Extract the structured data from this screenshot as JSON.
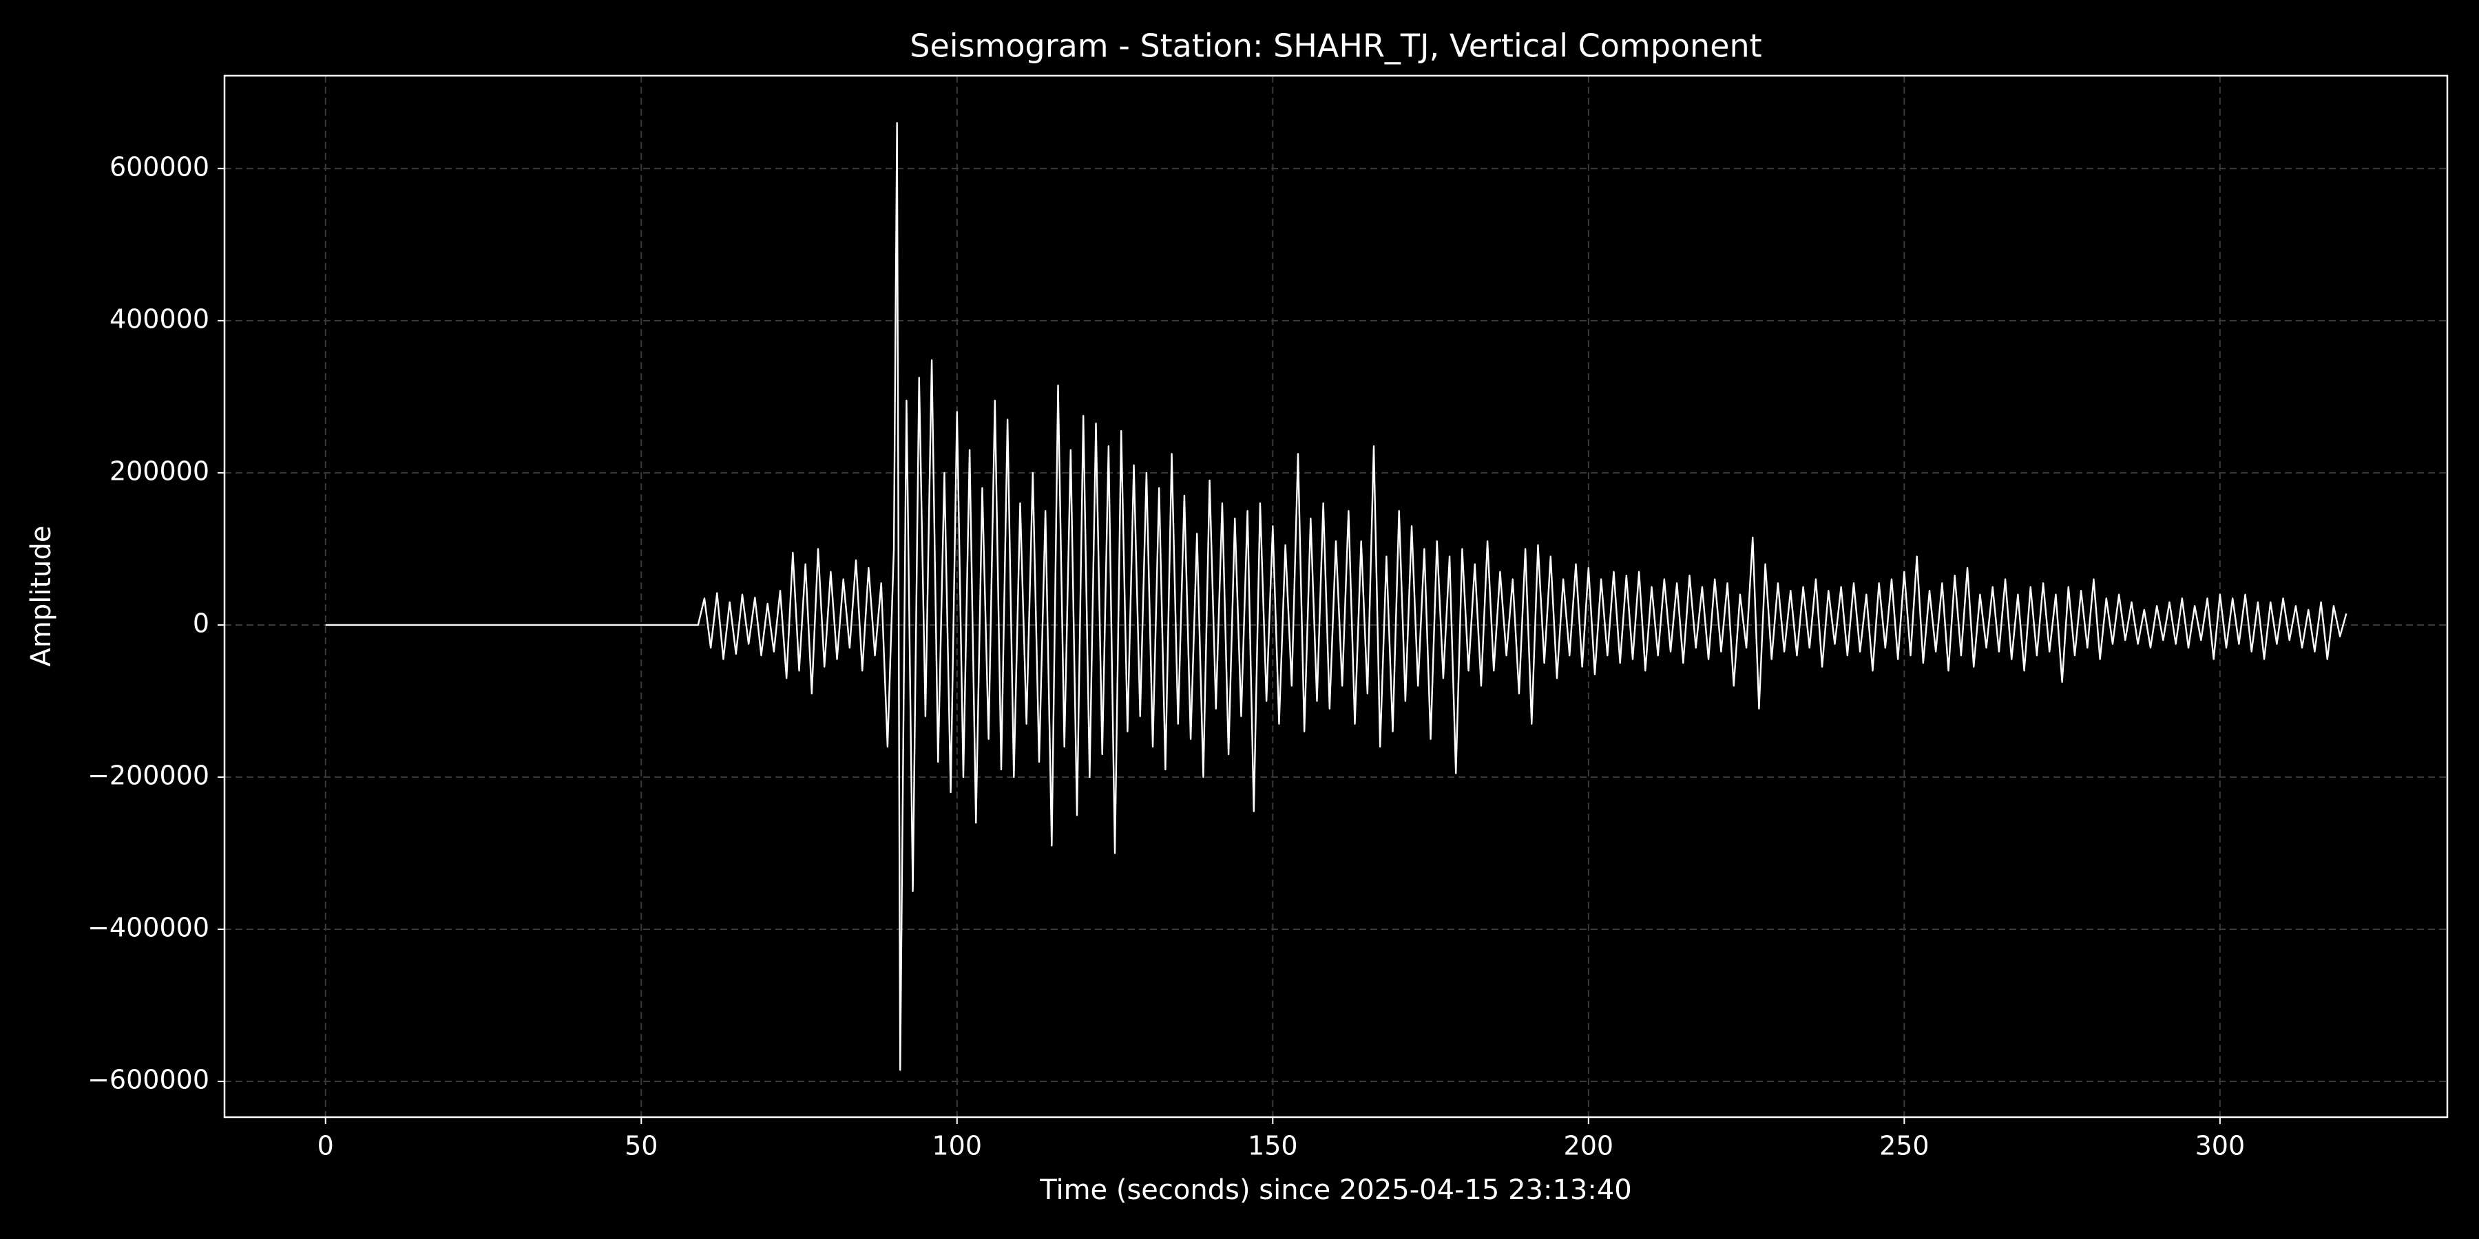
{
  "chart_data": {
    "type": "line",
    "title": "Seismogram - Station: SHAHR_TJ, Vertical Component",
    "xlabel": "Time (seconds) since 2025-04-15 23:13:40",
    "ylabel": "Amplitude",
    "background": "#000000",
    "color": "#ffffff",
    "grid": true,
    "xlim": [
      -16,
      336
    ],
    "ylim": [
      -647000,
      722000
    ],
    "xticks": [
      0,
      50,
      100,
      150,
      200,
      250,
      300
    ],
    "yticks": [
      {
        "value": -600000,
        "label": "−600000"
      },
      {
        "value": -400000,
        "label": "−400000"
      },
      {
        "value": -200000,
        "label": "−200000"
      },
      0,
      200000,
      400000,
      600000
    ],
    "x": [
      0,
      59,
      60,
      61,
      62,
      63,
      64,
      65,
      66,
      67,
      68,
      69,
      70,
      71,
      72,
      73,
      74,
      75,
      76,
      77,
      78,
      79,
      80,
      81,
      82,
      83,
      84,
      85,
      86,
      87,
      88,
      89,
      90,
      90.5,
      91,
      92,
      93,
      94,
      95,
      96,
      97,
      98,
      99,
      100,
      101,
      102,
      103,
      104,
      105,
      106,
      107,
      108,
      109,
      110,
      111,
      112,
      113,
      114,
      115,
      116,
      117,
      118,
      119,
      120,
      121,
      122,
      123,
      124,
      125,
      126,
      127,
      128,
      129,
      130,
      131,
      132,
      133,
      134,
      135,
      136,
      137,
      138,
      139,
      140,
      141,
      142,
      143,
      144,
      145,
      146,
      147,
      148,
      149,
      150,
      151,
      152,
      153,
      154,
      155,
      156,
      157,
      158,
      159,
      160,
      161,
      162,
      163,
      164,
      165,
      166,
      167,
      168,
      169,
      170,
      171,
      172,
      173,
      174,
      175,
      176,
      177,
      178,
      179,
      180,
      181,
      182,
      183,
      184,
      185,
      186,
      187,
      188,
      189,
      190,
      191,
      192,
      193,
      194,
      195,
      196,
      197,
      198,
      199,
      200,
      201,
      202,
      203,
      204,
      205,
      206,
      207,
      208,
      209,
      210,
      211,
      212,
      213,
      214,
      215,
      216,
      217,
      218,
      219,
      220,
      221,
      222,
      223,
      224,
      225,
      226,
      227,
      228,
      229,
      230,
      231,
      232,
      233,
      234,
      235,
      236,
      237,
      238,
      239,
      240,
      241,
      242,
      243,
      244,
      245,
      246,
      247,
      248,
      249,
      250,
      251,
      252,
      253,
      254,
      255,
      256,
      257,
      258,
      259,
      260,
      261,
      262,
      263,
      264,
      265,
      266,
      267,
      268,
      269,
      270,
      271,
      272,
      273,
      274,
      275,
      276,
      277,
      278,
      279,
      280,
      281,
      282,
      283,
      284,
      285,
      286,
      287,
      288,
      289,
      290,
      291,
      292,
      293,
      294,
      295,
      296,
      297,
      298,
      299,
      300,
      301,
      302,
      303,
      304,
      305,
      306,
      307,
      308,
      309,
      310,
      311,
      312,
      313,
      314,
      315,
      316,
      317,
      318,
      319,
      320
    ],
    "values": [
      0,
      0,
      35000,
      -30000,
      42000,
      -45000,
      30000,
      -38000,
      40000,
      -25000,
      36000,
      -40000,
      28000,
      -35000,
      45000,
      -70000,
      95000,
      -60000,
      80000,
      -90000,
      100000,
      -55000,
      70000,
      -45000,
      60000,
      -30000,
      85000,
      -60000,
      75000,
      -40000,
      55000,
      -160000,
      100000,
      660000,
      -585000,
      295000,
      -350000,
      325000,
      -120000,
      348000,
      -180000,
      200000,
      -220000,
      280000,
      -200000,
      230000,
      -260000,
      180000,
      -150000,
      295000,
      -190000,
      270000,
      -200000,
      160000,
      -130000,
      200000,
      -180000,
      150000,
      -290000,
      315000,
      -160000,
      230000,
      -250000,
      275000,
      -200000,
      265000,
      -170000,
      235000,
      -300000,
      255000,
      -140000,
      210000,
      -120000,
      200000,
      -160000,
      180000,
      -190000,
      225000,
      -130000,
      170000,
      -150000,
      120000,
      -200000,
      190000,
      -110000,
      160000,
      -170000,
      140000,
      -120000,
      150000,
      -245000,
      160000,
      -100000,
      130000,
      -130000,
      105000,
      -80000,
      225000,
      -140000,
      140000,
      -100000,
      160000,
      -110000,
      110000,
      -80000,
      150000,
      -130000,
      110000,
      -90000,
      235000,
      -160000,
      90000,
      -140000,
      150000,
      -100000,
      130000,
      -80000,
      100000,
      -150000,
      110000,
      -70000,
      90000,
      -195000,
      100000,
      -60000,
      80000,
      -80000,
      110000,
      -60000,
      70000,
      -40000,
      60000,
      -90000,
      100000,
      -130000,
      105000,
      -50000,
      90000,
      -70000,
      60000,
      -40000,
      80000,
      -55000,
      75000,
      -65000,
      60000,
      -40000,
      70000,
      -50000,
      65000,
      -45000,
      70000,
      -60000,
      50000,
      -40000,
      60000,
      -35000,
      55000,
      -50000,
      65000,
      -30000,
      50000,
      -45000,
      60000,
      -35000,
      55000,
      -80000,
      40000,
      -30000,
      115000,
      -110000,
      80000,
      -45000,
      55000,
      -35000,
      45000,
      -40000,
      50000,
      -30000,
      60000,
      -55000,
      45000,
      -25000,
      50000,
      -40000,
      55000,
      -35000,
      40000,
      -60000,
      55000,
      -30000,
      60000,
      -45000,
      70000,
      -40000,
      90000,
      -50000,
      45000,
      -35000,
      55000,
      -60000,
      65000,
      -40000,
      75000,
      -55000,
      40000,
      -30000,
      50000,
      -35000,
      60000,
      -45000,
      40000,
      -60000,
      50000,
      -40000,
      55000,
      -35000,
      40000,
      -75000,
      50000,
      -40000,
      45000,
      -30000,
      60000,
      -45000,
      35000,
      -25000,
      40000,
      -20000,
      30000,
      -25000,
      20000,
      -30000,
      25000,
      -20000,
      30000,
      -25000,
      35000,
      -30000,
      25000,
      -20000,
      35000,
      -45000,
      40000,
      -30000,
      35000,
      -25000,
      40000,
      -35000,
      30000,
      -45000,
      30000,
      -25000,
      35000,
      -20000,
      25000,
      -30000,
      20000,
      -35000,
      30000,
      -45000,
      25000,
      -15000,
      15000
    ]
  }
}
